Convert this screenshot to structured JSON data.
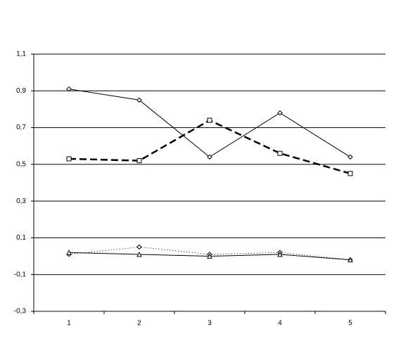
{
  "chart_data": {
    "type": "line",
    "categories": [
      "1",
      "2",
      "3",
      "4",
      "5"
    ],
    "series": [
      {
        "color": "#000000",
        "marker": "diamond",
        "dash": "solid",
        "width": 1,
        "values": [
          0.91,
          0.85,
          0.54,
          0.78,
          0.54
        ]
      },
      {
        "color": "#000000",
        "marker": "square",
        "dash": "dashed",
        "width": 2.5,
        "values": [
          0.53,
          0.52,
          0.74,
          0.56,
          0.45
        ]
      },
      {
        "color": "#000000",
        "marker": "diamond",
        "dash": "dotted",
        "width": 1,
        "values": [
          0.01,
          0.05,
          0.01,
          0.02,
          -0.02
        ]
      },
      {
        "color": "#000000",
        "marker": "triangle",
        "dash": "solid",
        "width": 1,
        "values": [
          0.02,
          0.01,
          0.0,
          0.01,
          -0.02
        ]
      }
    ],
    "ylim": [
      -0.3,
      1.1
    ],
    "yticks": [
      {
        "value": -0.3,
        "label": "-0,3"
      },
      {
        "value": -0.1,
        "label": "-0,1"
      },
      {
        "value": 0.1,
        "label": "0,1"
      },
      {
        "value": 0.3,
        "label": "0,3"
      },
      {
        "value": 0.5,
        "label": "0,5"
      },
      {
        "value": 0.7,
        "label": "0,7"
      },
      {
        "value": 0.9,
        "label": "0,9"
      },
      {
        "value": 1.1,
        "label": "1,1"
      }
    ],
    "grid": true
  }
}
